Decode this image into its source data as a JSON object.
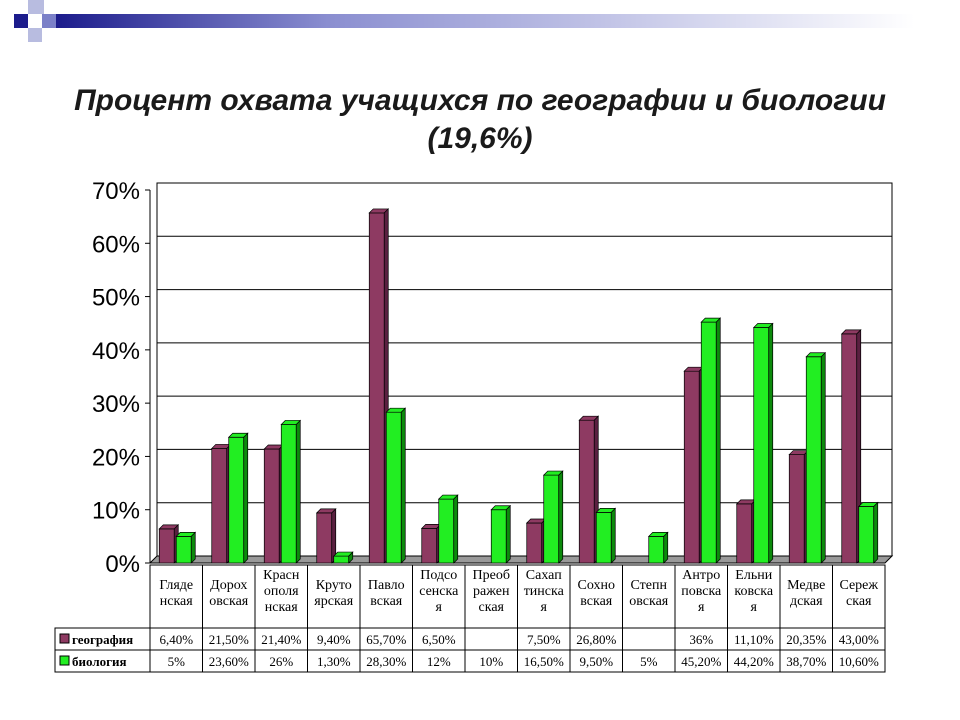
{
  "chart_data": {
    "type": "bar",
    "title": "Процент охвата учащихся по географии и биологии",
    "subtitle": "(19,6%)",
    "ylim": [
      0,
      70
    ],
    "yticks": [
      "0%",
      "10%",
      "20%",
      "30%",
      "40%",
      "50%",
      "60%",
      "70%"
    ],
    "grid": true,
    "legend_placement": "table-left",
    "categories": [
      [
        "Гляде",
        "нская"
      ],
      [
        "Дорох",
        "овская"
      ],
      [
        "Красн",
        "ополя",
        "нская"
      ],
      [
        "Круто",
        "ярская"
      ],
      [
        "Павло",
        "вская"
      ],
      [
        "Подсо",
        "сенска",
        "я"
      ],
      [
        "Преоб",
        "ражен",
        "ская"
      ],
      [
        "Сахап",
        "тинска",
        "я"
      ],
      [
        "Сохно",
        "вская"
      ],
      [
        "Степн",
        "овская"
      ],
      [
        "Антро",
        "повска",
        "я"
      ],
      [
        "Ельни",
        "ковска",
        "я"
      ],
      [
        "Медве",
        "дская"
      ],
      [
        "Сереж",
        "ская"
      ]
    ],
    "series": [
      {
        "name": "география",
        "color": "#8e3a62",
        "values": [
          6.4,
          21.5,
          21.4,
          9.4,
          65.7,
          6.5,
          null,
          7.5,
          26.8,
          null,
          36,
          11.1,
          20.35,
          43.0
        ],
        "labels": [
          "6,40%",
          "21,50%",
          "21,40%",
          "9,40%",
          "65,70%",
          "6,50%",
          "",
          "7,50%",
          "26,80%",
          "",
          "36%",
          "11,10%",
          "20,35%",
          "43,00%"
        ]
      },
      {
        "name": "биология",
        "color": "#22ee22",
        "values": [
          5,
          23.6,
          26,
          1.3,
          28.3,
          12,
          10,
          16.5,
          9.5,
          5,
          45.2,
          44.2,
          38.7,
          10.6
        ],
        "labels": [
          "5%",
          "23,60%",
          "26%",
          "1,30%",
          "28,30%",
          "12%",
          "10%",
          "16,50%",
          "9,50%",
          "5%",
          "45,20%",
          "44,20%",
          "38,70%",
          "10,60%"
        ]
      }
    ]
  }
}
